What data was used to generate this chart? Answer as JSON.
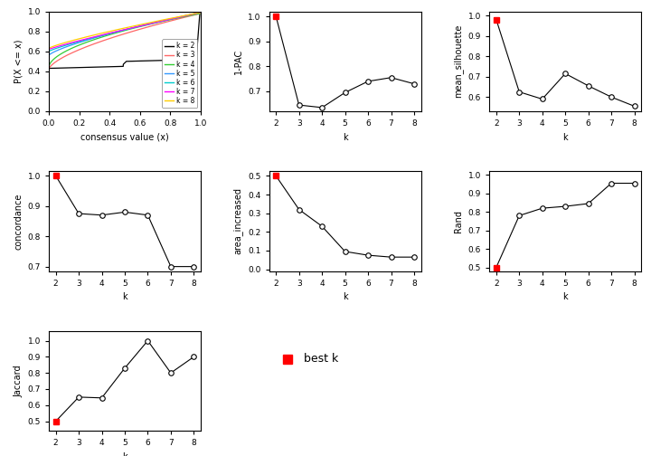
{
  "k_vals": [
    2,
    3,
    4,
    5,
    6,
    7,
    8
  ],
  "one_pac": [
    1.0,
    0.645,
    0.635,
    0.695,
    0.74,
    0.755,
    0.73
  ],
  "mean_silhouette": [
    0.98,
    0.625,
    0.59,
    0.715,
    0.655,
    0.6,
    0.555
  ],
  "concordance": [
    1.0,
    0.875,
    0.87,
    0.88,
    0.87,
    0.7,
    0.7
  ],
  "area_increased": [
    0.5,
    0.32,
    0.23,
    0.095,
    0.075,
    0.065,
    0.065
  ],
  "Rand": [
    0.5,
    0.78,
    0.82,
    0.83,
    0.845,
    0.955,
    0.955
  ],
  "Jaccard": [
    0.5,
    0.65,
    0.645,
    0.83,
    1.0,
    0.8,
    0.9
  ],
  "best_k": 2,
  "ecdf_colors": [
    "#000000",
    "#FF6666",
    "#33CC33",
    "#3399FF",
    "#00CCCC",
    "#FF00FF",
    "#FFCC00"
  ],
  "ecdf_k_labels": [
    "k = 2",
    "k = 3",
    "k = 4",
    "k = 5",
    "k = 6",
    "k = 7",
    "k = 8"
  ],
  "bg_color": "#FFFFFF"
}
